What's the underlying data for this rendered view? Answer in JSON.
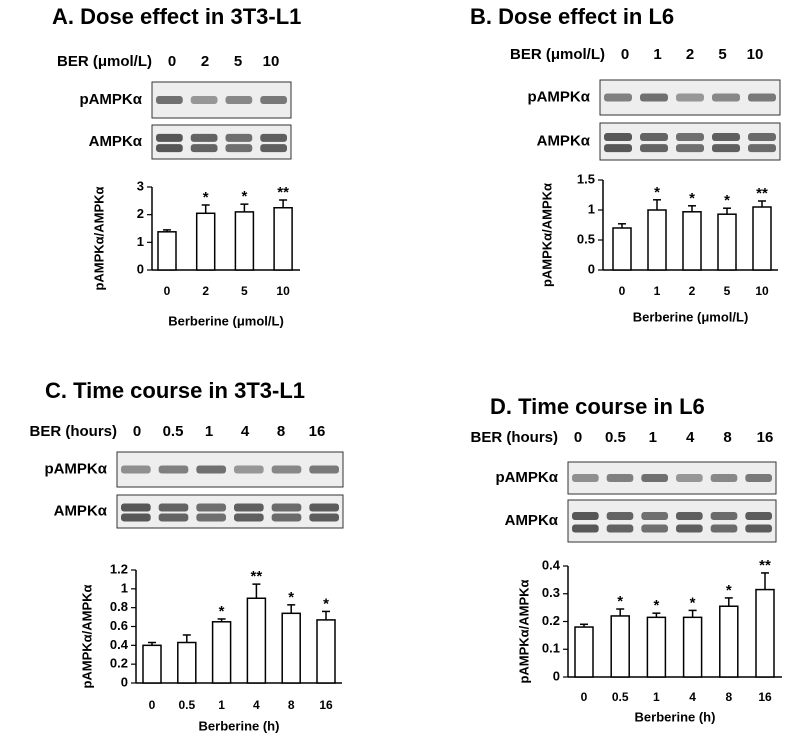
{
  "chart_data": [
    {
      "type": "bar",
      "title": "A. Dose effect in 3T3-L1",
      "blot_header": "BER (μmol/L)",
      "lanes": [
        "0",
        "2",
        "5",
        "10"
      ],
      "blot_rows": [
        "pAMPKα",
        "AMPKα"
      ],
      "categories": [
        "0",
        "2",
        "5",
        "10"
      ],
      "values": [
        1.38,
        2.05,
        2.1,
        2.25
      ],
      "errors": [
        0.07,
        0.3,
        0.28,
        0.28
      ],
      "annotations": [
        null,
        "*",
        "*",
        "**"
      ],
      "xlabel": "Berberine (μmol/L)",
      "ylabel": "pAMPKα/AMPKα",
      "ylim": [
        0,
        3
      ],
      "yticks": [
        0,
        1,
        2,
        3
      ],
      "color": "#ffffff"
    },
    {
      "type": "bar",
      "title": "B. Dose effect in L6",
      "blot_header": "BER (μmol/L)",
      "lanes": [
        "0",
        "1",
        "2",
        "5",
        "10"
      ],
      "blot_rows": [
        "pAMPKα",
        "AMPKα"
      ],
      "categories": [
        "0",
        "1",
        "2",
        "5",
        "10"
      ],
      "values": [
        0.7,
        1.0,
        0.97,
        0.93,
        1.05
      ],
      "errors": [
        0.07,
        0.17,
        0.1,
        0.1,
        0.1
      ],
      "annotations": [
        null,
        "*",
        "*",
        "*",
        "**"
      ],
      "xlabel": "Berberine (μmol/L)",
      "ylabel": "pAMPKα/AMPKα",
      "ylim": [
        0,
        1.5
      ],
      "yticks": [
        0,
        0.5,
        1,
        1.5
      ],
      "color": "#ffffff"
    },
    {
      "type": "bar",
      "title": "C. Time course in 3T3-L1",
      "blot_header": "BER (hours)",
      "lanes": [
        "0",
        "0.5",
        "1",
        "4",
        "8",
        "16"
      ],
      "blot_rows": [
        "pAMPKα",
        "AMPKα"
      ],
      "categories": [
        "0",
        "0.5",
        "1",
        "4",
        "8",
        "16"
      ],
      "values": [
        0.4,
        0.43,
        0.65,
        0.9,
        0.74,
        0.67
      ],
      "errors": [
        0.03,
        0.08,
        0.03,
        0.15,
        0.09,
        0.09
      ],
      "annotations": [
        null,
        null,
        "*",
        "**",
        "*",
        "*"
      ],
      "xlabel": "Berberine (h)",
      "ylabel": "pAMPKα/AMPKα",
      "ylim": [
        0,
        1.2
      ],
      "yticks": [
        0,
        0.2,
        0.4,
        0.6,
        0.8,
        1,
        1.2
      ],
      "color": "#ffffff"
    },
    {
      "type": "bar",
      "title": "D. Time course in L6",
      "blot_header": "BER (hours)",
      "lanes": [
        "0",
        "0.5",
        "1",
        "4",
        "8",
        "16"
      ],
      "blot_rows": [
        "pAMPKα",
        "AMPKα"
      ],
      "categories": [
        "0",
        "0.5",
        "1",
        "4",
        "8",
        "16"
      ],
      "values": [
        0.18,
        0.22,
        0.215,
        0.215,
        0.255,
        0.315
      ],
      "errors": [
        0.01,
        0.025,
        0.015,
        0.025,
        0.03,
        0.06
      ],
      "annotations": [
        null,
        "*",
        "*",
        "*",
        "*",
        "**"
      ],
      "xlabel": "Berberine (h)",
      "ylabel": "pAMPKα/AMPKα",
      "ylim": [
        0,
        0.4
      ],
      "yticks": [
        0,
        0.1,
        0.2,
        0.3,
        0.4
      ],
      "color": "#ffffff"
    }
  ]
}
